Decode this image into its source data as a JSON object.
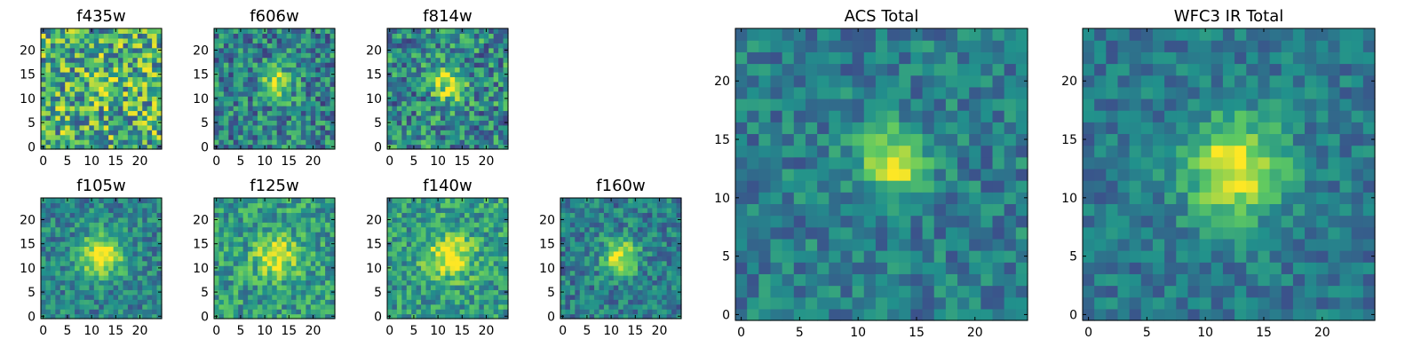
{
  "figure": {
    "background": "#ffffff",
    "colormap": "viridis",
    "colormap_stops": [
      "#440154",
      "#3b528b",
      "#21918c",
      "#5ec962",
      "#fde725"
    ]
  },
  "chart_data": [
    {
      "type": "heatmap",
      "title": "f435w",
      "grid_size": 25,
      "xticks": [
        0,
        5,
        10,
        15,
        20
      ],
      "yticks": [
        0,
        5,
        10,
        15,
        20
      ],
      "xlim": [
        -0.5,
        24.5
      ],
      "ylim": [
        -0.5,
        24.5
      ],
      "noise_level": 0.75,
      "peak_center": [
        12,
        13
      ],
      "peak_sigma": 2.5,
      "peak_strength": 0.15,
      "background_level": 0.62
    },
    {
      "type": "heatmap",
      "title": "f606w",
      "grid_size": 25,
      "xticks": [
        0,
        5,
        10,
        15,
        20
      ],
      "yticks": [
        0,
        5,
        10,
        15,
        20
      ],
      "xlim": [
        -0.5,
        24.5
      ],
      "ylim": [
        -0.5,
        24.5
      ],
      "noise_level": 0.55,
      "peak_center": [
        12.5,
        13
      ],
      "peak_sigma": 2.2,
      "peak_strength": 0.55,
      "background_level": 0.45
    },
    {
      "type": "heatmap",
      "title": "f814w",
      "grid_size": 25,
      "xticks": [
        0,
        5,
        10,
        15,
        20
      ],
      "yticks": [
        0,
        5,
        10,
        15,
        20
      ],
      "xlim": [
        -0.5,
        24.5
      ],
      "ylim": [
        -0.5,
        24.5
      ],
      "noise_level": 0.6,
      "peak_center": [
        12.5,
        13
      ],
      "peak_sigma": 2.2,
      "peak_strength": 0.5,
      "background_level": 0.48
    },
    {
      "type": "heatmap",
      "title": "f105w",
      "grid_size": 25,
      "xticks": [
        0,
        5,
        10,
        15,
        20
      ],
      "yticks": [
        0,
        5,
        10,
        15,
        20
      ],
      "xlim": [
        -0.5,
        24.5
      ],
      "ylim": [
        -0.5,
        24.5
      ],
      "noise_level": 0.4,
      "peak_center": [
        12,
        12.5
      ],
      "peak_sigma": 3.0,
      "peak_strength": 0.6,
      "background_level": 0.45
    },
    {
      "type": "heatmap",
      "title": "f125w",
      "grid_size": 25,
      "xticks": [
        0,
        5,
        10,
        15,
        20
      ],
      "yticks": [
        0,
        5,
        10,
        15,
        20
      ],
      "xlim": [
        -0.5,
        24.5
      ],
      "ylim": [
        -0.5,
        24.5
      ],
      "noise_level": 0.45,
      "peak_center": [
        12.5,
        12.5
      ],
      "peak_sigma": 3.0,
      "peak_strength": 0.45,
      "background_level": 0.55
    },
    {
      "type": "heatmap",
      "title": "f140w",
      "grid_size": 25,
      "xticks": [
        0,
        5,
        10,
        15,
        20
      ],
      "yticks": [
        0,
        5,
        10,
        15,
        20
      ],
      "xlim": [
        -0.5,
        24.5
      ],
      "ylim": [
        -0.5,
        24.5
      ],
      "noise_level": 0.45,
      "peak_center": [
        12.5,
        12.5
      ],
      "peak_sigma": 3.2,
      "peak_strength": 0.45,
      "background_level": 0.55
    },
    {
      "type": "heatmap",
      "title": "f160w",
      "grid_size": 25,
      "xticks": [
        0,
        5,
        10,
        15,
        20
      ],
      "yticks": [
        0,
        5,
        10,
        15,
        20
      ],
      "xlim": [
        -0.5,
        24.5
      ],
      "ylim": [
        -0.5,
        24.5
      ],
      "noise_level": 0.4,
      "peak_center": [
        12,
        12.5
      ],
      "peak_sigma": 2.6,
      "peak_strength": 0.55,
      "background_level": 0.42
    },
    {
      "type": "heatmap",
      "title": "ACS Total",
      "grid_size": 25,
      "xticks": [
        0,
        5,
        10,
        15,
        20
      ],
      "yticks": [
        0,
        5,
        10,
        15,
        20
      ],
      "xlim": [
        -0.5,
        24.5
      ],
      "ylim": [
        -0.5,
        24.5
      ],
      "noise_level": 0.35,
      "peak_center": [
        13,
        13
      ],
      "peak_sigma": 2.0,
      "peak_strength": 0.6,
      "background_level": 0.42
    },
    {
      "type": "heatmap",
      "title": "WFC3 IR Total",
      "grid_size": 25,
      "xticks": [
        0,
        5,
        10,
        15,
        20
      ],
      "yticks": [
        0,
        5,
        10,
        15,
        20
      ],
      "xlim": [
        -0.5,
        24.5
      ],
      "ylim": [
        -0.5,
        24.5
      ],
      "noise_level": 0.3,
      "peak_center": [
        12.5,
        12.5
      ],
      "peak_sigma": 3.0,
      "peak_strength": 0.6,
      "background_level": 0.4
    }
  ]
}
